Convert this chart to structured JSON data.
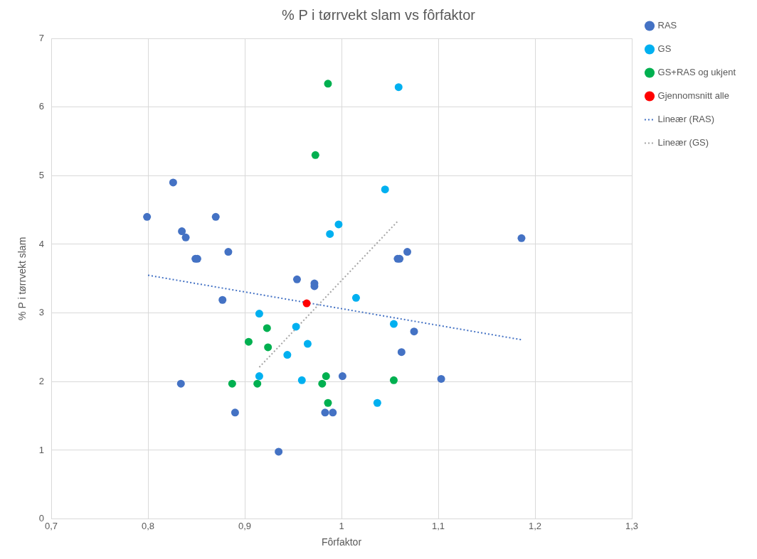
{
  "chart_data": {
    "type": "scatter",
    "title": "% P i tørrvekt slam vs fôrfaktor",
    "xlabel": "Fôrfaktor",
    "ylabel": "% P i tørrvekt slam",
    "xlim": [
      0.7,
      1.3
    ],
    "xticks": [
      {
        "value": 0.7,
        "label": "0,7"
      },
      {
        "value": 0.8,
        "label": "0,8"
      },
      {
        "value": 0.9,
        "label": "0,9"
      },
      {
        "value": 1,
        "label": "1"
      },
      {
        "value": 1.1,
        "label": "1,1"
      },
      {
        "value": 1.2,
        "label": "1,2"
      },
      {
        "value": 1.3,
        "label": "1,3"
      }
    ],
    "ylim": [
      0,
      7
    ],
    "yticks": [
      0,
      1,
      2,
      3,
      4,
      5,
      6,
      7
    ],
    "grid": true,
    "legend": "right",
    "marker": "circle",
    "series": [
      {
        "name": "RAS",
        "color": "#4472c4",
        "x": [
          0.799,
          0.826,
          0.835,
          0.839,
          0.849,
          0.851,
          0.87,
          0.883,
          0.877,
          0.834,
          0.89,
          0.935,
          0.954,
          0.972,
          0.972,
          0.983,
          0.991,
          1.001,
          1.058,
          1.06,
          1.068,
          1.075,
          1.062,
          1.103,
          1.186
        ],
        "values": [
          4.4,
          4.9,
          4.19,
          4.1,
          3.79,
          3.79,
          4.4,
          3.89,
          3.19,
          1.97,
          1.55,
          0.98,
          3.49,
          3.43,
          3.39,
          1.55,
          1.55,
          2.08,
          3.79,
          3.79,
          3.89,
          2.73,
          2.43,
          2.04,
          4.09
        ]
      },
      {
        "name": "GS",
        "color": "#00b0f0",
        "x": [
          1.059,
          1.045,
          0.997,
          0.988,
          1.015,
          0.915,
          0.953,
          0.965,
          0.944,
          0.915,
          0.959,
          1.054,
          1.037
        ],
        "values": [
          6.29,
          4.8,
          4.29,
          4.15,
          3.22,
          2.99,
          2.8,
          2.55,
          2.39,
          2.08,
          2.02,
          2.84,
          1.69
        ]
      },
      {
        "name": "GS+RAS og ukjent",
        "color": "#00b050",
        "x": [
          0.986,
          0.973,
          0.904,
          0.923,
          0.924,
          0.887,
          0.913,
          0.984,
          0.98,
          0.986,
          1.054
        ],
        "values": [
          6.34,
          5.3,
          2.58,
          2.78,
          2.5,
          1.97,
          1.97,
          2.08,
          1.97,
          1.69,
          2.02
        ]
      },
      {
        "name": "Gjennomsnitt alle",
        "color": "#ff0000",
        "x": [
          0.964
        ],
        "values": [
          3.14
        ]
      },
      {
        "name": "Lineær (RAS)",
        "type": "line",
        "color": "#4472c4",
        "line_style": "dotted",
        "marker": "none",
        "x": [
          0.8,
          1.186
        ],
        "values": [
          3.55,
          2.61
        ]
      },
      {
        "name": "Lineær (GS)",
        "type": "line",
        "color": "#a5a5a5",
        "line_style": "dotted",
        "marker": "none",
        "x": [
          0.915,
          1.059
        ],
        "values": [
          2.21,
          4.35
        ]
      }
    ]
  }
}
